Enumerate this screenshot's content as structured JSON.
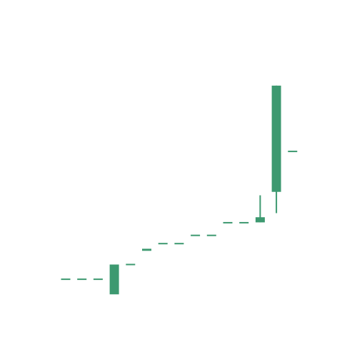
{
  "chart_data": {
    "type": "candlestick",
    "title": "",
    "xlabel": "",
    "ylabel": "",
    "axes_visible": false,
    "grid": false,
    "legend": "none",
    "up_color": "#3d9970",
    "down_color": "#e8533f",
    "ylim": [
      0,
      100
    ],
    "candles": [
      {
        "open": 20.6,
        "high": 20.6,
        "low": 20.6,
        "close": 20.6
      },
      {
        "open": 20.6,
        "high": 20.6,
        "low": 20.6,
        "close": 20.6
      },
      {
        "open": 20.6,
        "high": 20.6,
        "low": 20.6,
        "close": 20.6
      },
      {
        "open": 16.2,
        "high": 24.9,
        "low": 16.2,
        "close": 24.9
      },
      {
        "open": 24.9,
        "high": 24.9,
        "low": 24.9,
        "close": 24.9
      },
      {
        "open": 28.9,
        "high": 29.5,
        "low": 28.9,
        "close": 29.5
      },
      {
        "open": 31.0,
        "high": 31.0,
        "low": 31.0,
        "close": 31.0
      },
      {
        "open": 31.0,
        "high": 31.0,
        "low": 31.0,
        "close": 31.0
      },
      {
        "open": 33.4,
        "high": 33.4,
        "low": 33.4,
        "close": 33.4
      },
      {
        "open": 33.4,
        "high": 33.4,
        "low": 33.4,
        "close": 33.4
      },
      {
        "open": 37.1,
        "high": 37.1,
        "low": 37.1,
        "close": 37.1
      },
      {
        "open": 37.1,
        "high": 37.1,
        "low": 37.1,
        "close": 37.1
      },
      {
        "open": 37.2,
        "high": 45.1,
        "low": 37.2,
        "close": 38.7
      },
      {
        "open": 46.1,
        "high": 77.1,
        "low": 39.9,
        "close": 77.1
      },
      {
        "open": 57.9,
        "high": 57.9,
        "low": 57.9,
        "close": 57.9
      }
    ]
  }
}
